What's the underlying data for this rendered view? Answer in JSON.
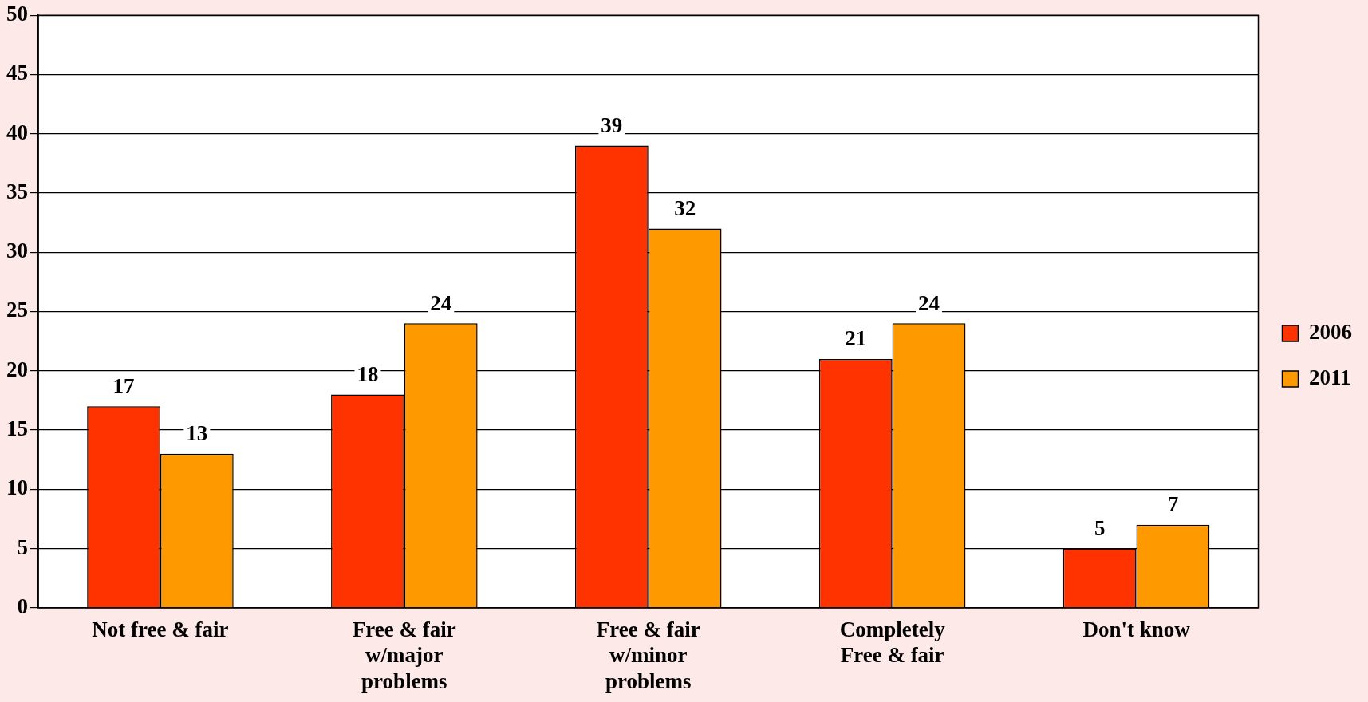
{
  "chart_data": {
    "type": "bar",
    "categories": [
      "Not free & fair",
      "Free & fair w/major problems",
      "Free & fair w/minor problems",
      "Completely Free & fair",
      "Don't know"
    ],
    "series": [
      {
        "name": "2006",
        "color": "#ff3300",
        "values": [
          17,
          18,
          39,
          21,
          5
        ]
      },
      {
        "name": "2011",
        "color": "#ff9900",
        "values": [
          13,
          24,
          32,
          24,
          7
        ]
      }
    ],
    "ylim": [
      0,
      50
    ],
    "yticks": [
      0,
      5,
      10,
      15,
      20,
      25,
      30,
      35,
      40,
      45,
      50
    ],
    "grid": "y",
    "legend": "right",
    "data_labels": true
  }
}
